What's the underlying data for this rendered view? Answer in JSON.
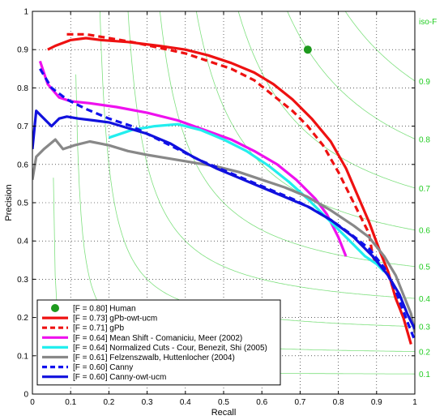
{
  "chart_data": {
    "type": "line",
    "xlabel": "Recall",
    "ylabel": "Precision",
    "xlim": [
      0,
      1
    ],
    "ylim": [
      0,
      1
    ],
    "xticks": [
      "0",
      "0.1",
      "0.2",
      "0.3",
      "0.4",
      "0.5",
      "0.6",
      "0.7",
      "0.8",
      "0.9",
      "1"
    ],
    "yticks": [
      "0",
      "0.1",
      "0.2",
      "0.3",
      "0.4",
      "0.5",
      "0.6",
      "0.7",
      "0.8",
      "0.9",
      "1"
    ],
    "grid": true,
    "legend_position": "bottom-left",
    "iso_f": {
      "label": "iso-F",
      "values": [
        0.1,
        0.2,
        0.3,
        0.4,
        0.5,
        0.6,
        0.7,
        0.8,
        0.9
      ],
      "labels": [
        "0.1",
        "0.2",
        "0.3",
        "0.4",
        "0.5",
        "0.6",
        "0.7",
        "0.8",
        "0.9"
      ],
      "color": "#7fe07f"
    },
    "human": {
      "name": "[F = 0.80] Human",
      "x": 0.72,
      "y": 0.9,
      "color": "#1e9a1e"
    },
    "series": [
      {
        "name": "[F = 0.73] gPb-owt-ucm",
        "color": "#ee1111",
        "dash": false,
        "points": [
          [
            0.04,
            0.9
          ],
          [
            0.06,
            0.91
          ],
          [
            0.1,
            0.925
          ],
          [
            0.14,
            0.93
          ],
          [
            0.18,
            0.925
          ],
          [
            0.25,
            0.92
          ],
          [
            0.33,
            0.91
          ],
          [
            0.4,
            0.9
          ],
          [
            0.46,
            0.885
          ],
          [
            0.52,
            0.865
          ],
          [
            0.58,
            0.84
          ],
          [
            0.63,
            0.81
          ],
          [
            0.68,
            0.77
          ],
          [
            0.73,
            0.72
          ],
          [
            0.78,
            0.66
          ],
          [
            0.82,
            0.59
          ],
          [
            0.85,
            0.52
          ],
          [
            0.88,
            0.45
          ],
          [
            0.91,
            0.37
          ],
          [
            0.93,
            0.32
          ],
          [
            0.95,
            0.25
          ],
          [
            0.97,
            0.2
          ],
          [
            0.99,
            0.13
          ]
        ]
      },
      {
        "name": "[F = 0.71] gPb",
        "color": "#ee1111",
        "dash": true,
        "points": [
          [
            0.09,
            0.94
          ],
          [
            0.14,
            0.94
          ],
          [
            0.2,
            0.93
          ],
          [
            0.26,
            0.92
          ],
          [
            0.33,
            0.905
          ],
          [
            0.4,
            0.89
          ],
          [
            0.46,
            0.87
          ],
          [
            0.52,
            0.85
          ],
          [
            0.58,
            0.82
          ],
          [
            0.63,
            0.78
          ],
          [
            0.68,
            0.74
          ],
          [
            0.72,
            0.7
          ],
          [
            0.76,
            0.65
          ],
          [
            0.8,
            0.58
          ],
          [
            0.83,
            0.52
          ],
          [
            0.86,
            0.46
          ],
          [
            0.88,
            0.42
          ],
          [
            0.89,
            0.36
          ],
          [
            0.9,
            0.34
          ]
        ]
      },
      {
        "name": "[F = 0.64] Mean Shift - Comaniciu, Meer (2002)",
        "color": "#ee11ee",
        "dash": false,
        "points": [
          [
            0.02,
            0.87
          ],
          [
            0.04,
            0.81
          ],
          [
            0.07,
            0.775
          ],
          [
            0.1,
            0.765
          ],
          [
            0.15,
            0.76
          ],
          [
            0.22,
            0.75
          ],
          [
            0.3,
            0.735
          ],
          [
            0.38,
            0.715
          ],
          [
            0.45,
            0.69
          ],
          [
            0.52,
            0.665
          ],
          [
            0.58,
            0.635
          ],
          [
            0.64,
            0.6
          ],
          [
            0.69,
            0.56
          ],
          [
            0.74,
            0.51
          ],
          [
            0.77,
            0.47
          ],
          [
            0.8,
            0.41
          ],
          [
            0.82,
            0.36
          ]
        ]
      },
      {
        "name": "[F = 0.64] Normalized Cuts - Cour, Benezit, Shi (2005)",
        "color": "#22eeee",
        "dash": false,
        "points": [
          [
            0.2,
            0.67
          ],
          [
            0.26,
            0.69
          ],
          [
            0.32,
            0.7
          ],
          [
            0.38,
            0.705
          ],
          [
            0.44,
            0.69
          ],
          [
            0.5,
            0.665
          ],
          [
            0.56,
            0.635
          ],
          [
            0.62,
            0.595
          ],
          [
            0.67,
            0.555
          ],
          [
            0.72,
            0.51
          ],
          [
            0.76,
            0.47
          ],
          [
            0.8,
            0.43
          ],
          [
            0.84,
            0.39
          ],
          [
            0.87,
            0.36
          ],
          [
            0.9,
            0.34
          ],
          [
            0.92,
            0.32
          ]
        ]
      },
      {
        "name": "[F = 0.61] Felzenszwalb, Huttenlocher (2004)",
        "color": "#888888",
        "dash": false,
        "points": [
          [
            0.0,
            0.56
          ],
          [
            0.01,
            0.62
          ],
          [
            0.03,
            0.64
          ],
          [
            0.06,
            0.665
          ],
          [
            0.08,
            0.64
          ],
          [
            0.11,
            0.65
          ],
          [
            0.15,
            0.66
          ],
          [
            0.2,
            0.65
          ],
          [
            0.25,
            0.635
          ],
          [
            0.3,
            0.625
          ],
          [
            0.36,
            0.615
          ],
          [
            0.42,
            0.605
          ],
          [
            0.48,
            0.595
          ],
          [
            0.54,
            0.58
          ],
          [
            0.6,
            0.56
          ],
          [
            0.66,
            0.54
          ],
          [
            0.72,
            0.515
          ],
          [
            0.78,
            0.48
          ],
          [
            0.84,
            0.44
          ],
          [
            0.88,
            0.41
          ],
          [
            0.92,
            0.36
          ],
          [
            0.95,
            0.31
          ],
          [
            0.97,
            0.26
          ],
          [
            0.99,
            0.21
          ],
          [
            1.0,
            0.16
          ]
        ]
      },
      {
        "name": "[F = 0.60] Canny",
        "color": "#1111ee",
        "dash": true,
        "points": [
          [
            0.02,
            0.85
          ],
          [
            0.05,
            0.8
          ],
          [
            0.09,
            0.77
          ],
          [
            0.14,
            0.745
          ],
          [
            0.2,
            0.72
          ],
          [
            0.26,
            0.7
          ],
          [
            0.32,
            0.67
          ],
          [
            0.38,
            0.64
          ],
          [
            0.44,
            0.61
          ],
          [
            0.5,
            0.585
          ],
          [
            0.56,
            0.56
          ],
          [
            0.62,
            0.535
          ],
          [
            0.68,
            0.51
          ],
          [
            0.73,
            0.485
          ],
          [
            0.78,
            0.455
          ],
          [
            0.83,
            0.42
          ],
          [
            0.88,
            0.38
          ],
          [
            0.92,
            0.33
          ],
          [
            0.95,
            0.27
          ],
          [
            0.98,
            0.19
          ],
          [
            1.0,
            0.14
          ]
        ]
      },
      {
        "name": "[F = 0.60] Canny-owt-ucm",
        "color": "#1111dd",
        "dash": false,
        "points": [
          [
            0.0,
            0.64
          ],
          [
            0.01,
            0.74
          ],
          [
            0.03,
            0.72
          ],
          [
            0.05,
            0.7
          ],
          [
            0.07,
            0.72
          ],
          [
            0.09,
            0.725
          ],
          [
            0.12,
            0.72
          ],
          [
            0.16,
            0.715
          ],
          [
            0.2,
            0.71
          ],
          [
            0.25,
            0.695
          ],
          [
            0.3,
            0.68
          ],
          [
            0.36,
            0.655
          ],
          [
            0.42,
            0.62
          ],
          [
            0.48,
            0.59
          ],
          [
            0.54,
            0.565
          ],
          [
            0.6,
            0.54
          ],
          [
            0.66,
            0.515
          ],
          [
            0.72,
            0.49
          ],
          [
            0.78,
            0.455
          ],
          [
            0.84,
            0.41
          ],
          [
            0.89,
            0.36
          ],
          [
            0.93,
            0.31
          ],
          [
            0.96,
            0.26
          ],
          [
            0.98,
            0.21
          ],
          [
            1.0,
            0.17
          ]
        ]
      }
    ]
  }
}
